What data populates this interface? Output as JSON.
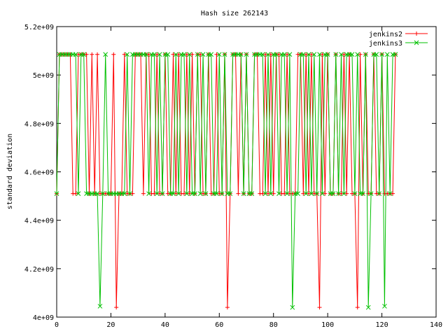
{
  "chart_data": {
    "type": "line",
    "title": "Hash size 262143",
    "xlabel": "",
    "ylabel": "standard deviation",
    "xlim": [
      0,
      140
    ],
    "ylim": [
      4000000000,
      5200000000
    ],
    "x_ticks": [
      0,
      20,
      40,
      60,
      80,
      100,
      120,
      140
    ],
    "x_tick_labels": [
      "0",
      "20",
      "40",
      "60",
      "80",
      "100",
      "120",
      "140"
    ],
    "y_ticks": [
      4000000000,
      4200000000,
      4400000000,
      4600000000,
      4800000000,
      5000000000,
      5200000000
    ],
    "y_tick_labels": [
      "4e+09",
      "4.2e+09",
      "4.4e+09",
      "4.6e+09",
      "4.8e+09",
      "5e+09",
      "5.2e+09"
    ],
    "grid": false,
    "legend_position": "top-right",
    "x": [
      0,
      1,
      2,
      3,
      4,
      5,
      6,
      7,
      8,
      9,
      10,
      11,
      12,
      13,
      14,
      15,
      16,
      17,
      18,
      19,
      20,
      21,
      22,
      23,
      24,
      25,
      26,
      27,
      28,
      29,
      30,
      31,
      32,
      33,
      34,
      35,
      36,
      37,
      38,
      39,
      40,
      41,
      42,
      43,
      44,
      45,
      46,
      47,
      48,
      49,
      50,
      51,
      52,
      53,
      54,
      55,
      56,
      57,
      58,
      59,
      60,
      61,
      62,
      63,
      64,
      65,
      66,
      67,
      68,
      69,
      70,
      71,
      72,
      73,
      74,
      75,
      76,
      77,
      78,
      79,
      80,
      81,
      82,
      83,
      84,
      85,
      86,
      87,
      88,
      89,
      90,
      91,
      92,
      93,
      94,
      95,
      96,
      97,
      98,
      99,
      100,
      101,
      102,
      103,
      104,
      105,
      106,
      107,
      108,
      109,
      110,
      111,
      112,
      113,
      114,
      115,
      116,
      117,
      118,
      119,
      120,
      121,
      122,
      123,
      124,
      125
    ],
    "series": [
      {
        "name": "jenkins2",
        "color": "#ff0000",
        "marker": "plus",
        "values": [
          4510000000,
          5085000000,
          5085000000,
          5085000000,
          5085000000,
          5085000000,
          4510000000,
          4510000000,
          5085000000,
          5085000000,
          5085000000,
          5085000000,
          4510000000,
          5085000000,
          4510000000,
          5085000000,
          4510000000,
          4510000000,
          4510000000,
          4510000000,
          4510000000,
          5085000000,
          4040000000,
          4510000000,
          4510000000,
          5085000000,
          4510000000,
          4510000000,
          4510000000,
          5085000000,
          5085000000,
          5085000000,
          4510000000,
          5085000000,
          5085000000,
          4510000000,
          4510000000,
          5085000000,
          4510000000,
          4510000000,
          5085000000,
          4510000000,
          4510000000,
          5085000000,
          4510000000,
          5085000000,
          4510000000,
          4510000000,
          5085000000,
          4510000000,
          5085000000,
          4510000000,
          5085000000,
          5085000000,
          4510000000,
          4510000000,
          5085000000,
          4510000000,
          4510000000,
          5085000000,
          4510000000,
          4510000000,
          5085000000,
          4040000000,
          4510000000,
          5085000000,
          5085000000,
          4510000000,
          5085000000,
          4510000000,
          5085000000,
          4510000000,
          4510000000,
          5085000000,
          5085000000,
          4510000000,
          4510000000,
          5085000000,
          4510000000,
          5085000000,
          4510000000,
          5085000000,
          5085000000,
          4510000000,
          4510000000,
          5085000000,
          4510000000,
          4510000000,
          4510000000,
          5085000000,
          5085000000,
          4510000000,
          5085000000,
          4510000000,
          5085000000,
          4510000000,
          4510000000,
          4040000000,
          5085000000,
          4510000000,
          5085000000,
          4510000000,
          4510000000,
          5085000000,
          4510000000,
          4510000000,
          5085000000,
          4510000000,
          5085000000,
          4510000000,
          4510000000,
          4040000000,
          5085000000,
          4510000000,
          5085000000,
          4510000000,
          4510000000,
          5085000000,
          4510000000,
          4510000000,
          5085000000,
          4510000000,
          4510000000,
          4510000000,
          4510000000,
          5085000000
        ]
      },
      {
        "name": "jenkins3",
        "color": "#00c000",
        "marker": "x",
        "values": [
          4510000000,
          5085000000,
          5085000000,
          5085000000,
          5085000000,
          5085000000,
          5085000000,
          5085000000,
          4510000000,
          5085000000,
          5085000000,
          4510000000,
          4510000000,
          4510000000,
          4510000000,
          4510000000,
          4045000000,
          4510000000,
          5085000000,
          4510000000,
          4510000000,
          4510000000,
          4510000000,
          4510000000,
          4510000000,
          4510000000,
          5085000000,
          4510000000,
          5085000000,
          5085000000,
          5085000000,
          5085000000,
          5085000000,
          5085000000,
          4510000000,
          5085000000,
          5085000000,
          4510000000,
          5085000000,
          4510000000,
          5085000000,
          5085000000,
          4510000000,
          4510000000,
          5085000000,
          4510000000,
          5085000000,
          5085000000,
          4510000000,
          5085000000,
          4510000000,
          4510000000,
          5085000000,
          4510000000,
          5085000000,
          4510000000,
          5085000000,
          5085000000,
          4510000000,
          4510000000,
          5085000000,
          4510000000,
          5085000000,
          4510000000,
          4510000000,
          5085000000,
          5085000000,
          5085000000,
          5085000000,
          4510000000,
          5085000000,
          4510000000,
          4510000000,
          5085000000,
          5085000000,
          5085000000,
          5085000000,
          4510000000,
          5085000000,
          4510000000,
          5085000000,
          5085000000,
          4510000000,
          5085000000,
          5085000000,
          4510000000,
          5085000000,
          4040000000,
          4510000000,
          4510000000,
          5085000000,
          5085000000,
          4510000000,
          5085000000,
          4510000000,
          5085000000,
          4510000000,
          5085000000,
          4510000000,
          5085000000,
          5085000000,
          4510000000,
          4510000000,
          5085000000,
          4510000000,
          5085000000,
          4510000000,
          5085000000,
          5085000000,
          5085000000,
          4510000000,
          5085000000,
          4510000000,
          4510000000,
          5085000000,
          4040000000,
          4510000000,
          5085000000,
          5085000000,
          4510000000,
          5085000000,
          4045000000,
          5085000000,
          4510000000,
          5085000000,
          5085000000
        ]
      }
    ]
  }
}
